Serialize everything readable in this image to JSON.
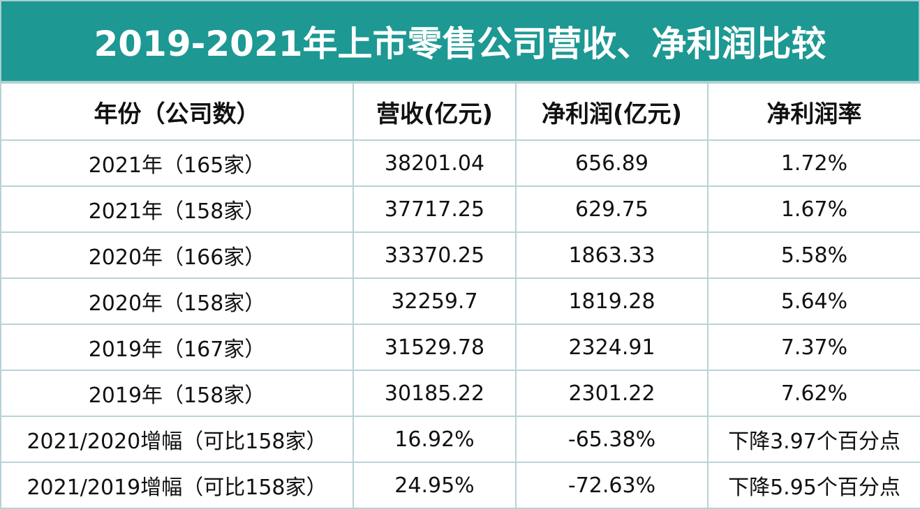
{
  "header": {
    "title": "2019-2021年上市零售公司营收、净利润比较"
  },
  "table": {
    "columns": [
      "年份（公司数）",
      "营收(亿元)",
      "净利润(亿元)",
      "净利润率"
    ],
    "rows": [
      [
        "2021年（165家）",
        "38201.04",
        "656.89",
        "1.72%"
      ],
      [
        "2021年（158家）",
        "37717.25",
        "629.75",
        "1.67%"
      ],
      [
        "2020年（166家）",
        "33370.25",
        "1863.33",
        "5.58%"
      ],
      [
        "2020年（158家）",
        "32259.7",
        "1819.28",
        "5.64%"
      ],
      [
        "2019年（167家）",
        "31529.78",
        "2324.91",
        "7.37%"
      ],
      [
        "2019年（158家）",
        "30185.22",
        "2301.22",
        "7.62%"
      ],
      [
        "2021/2020增幅（可比158家）",
        "16.92%",
        "-65.38%",
        "下降3.97个百分点"
      ],
      [
        "2021/2019增幅（可比158家）",
        "24.95%",
        "-72.63%",
        "下降5.95个百分点"
      ]
    ]
  }
}
